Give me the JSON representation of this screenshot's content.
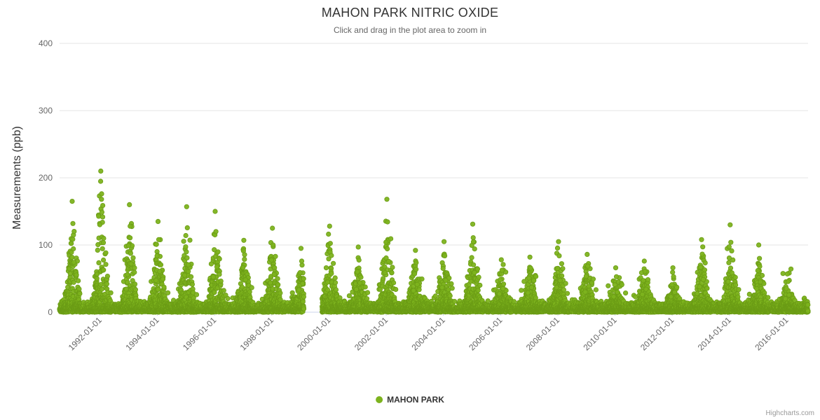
{
  "chart": {
    "title": "MAHON PARK NITRIC OXIDE",
    "subtitle": "Click and drag in the plot area to zoom in"
  },
  "credits": {
    "label": "Highcharts.com"
  },
  "chart_data": {
    "type": "scatter",
    "title": "MAHON PARK NITRIC OXIDE",
    "subtitle": "Click and drag in the plot area to zoom in",
    "xlabel": "",
    "ylabel": "Measurements (ppb)",
    "ylim": [
      0,
      400
    ],
    "yticks": [
      0,
      100,
      200,
      300,
      400
    ],
    "xtick_labels": [
      "1992-01-01",
      "1994-01-01",
      "1996-01-01",
      "1998-01-01",
      "2000-01-01",
      "2002-01-01",
      "2004-01-01",
      "2006-01-01",
      "2008-01-01",
      "2010-01-01",
      "2012-01-01",
      "2014-01-01",
      "2016-01-01"
    ],
    "x_range": {
      "start": "1990-08-01",
      "end": "2016-09-30"
    },
    "data_gap": {
      "start": "1999-02-15",
      "end": "1999-10-01"
    },
    "grid": "horizontal",
    "gridline_color": "#e6e6e6",
    "axis_line_color": "#ccd6eb",
    "tick_label_color": "#666666",
    "legend_position": "bottom-center",
    "series": [
      {
        "name": "MAHON PARK",
        "color": "#7db31e",
        "marker_stroke": "#6b9c15",
        "marker_radius": 3.2,
        "seasonality": "annual winter peaks (Dec-Jan); summer baseline near 0-20 ppb",
        "baseline_ppb": [
          0,
          30
        ],
        "annual_winter_peaks_ppb": {
          "1991": 165,
          "1992": 210,
          "1993": 160,
          "1994": 135,
          "1995": 157,
          "1996": 150,
          "1997": 107,
          "1998": 125,
          "1999": 95,
          "2000": 128,
          "2001": 97,
          "2002": 168,
          "2003": 92,
          "2004": 105,
          "2005": 131,
          "2006": 78,
          "2007": 82,
          "2008": 105,
          "2009": 86,
          "2010": 66,
          "2011": 76,
          "2012": 66,
          "2013": 108,
          "2014": 130,
          "2015": 100,
          "2016": 57
        },
        "seed": 42
      }
    ]
  }
}
